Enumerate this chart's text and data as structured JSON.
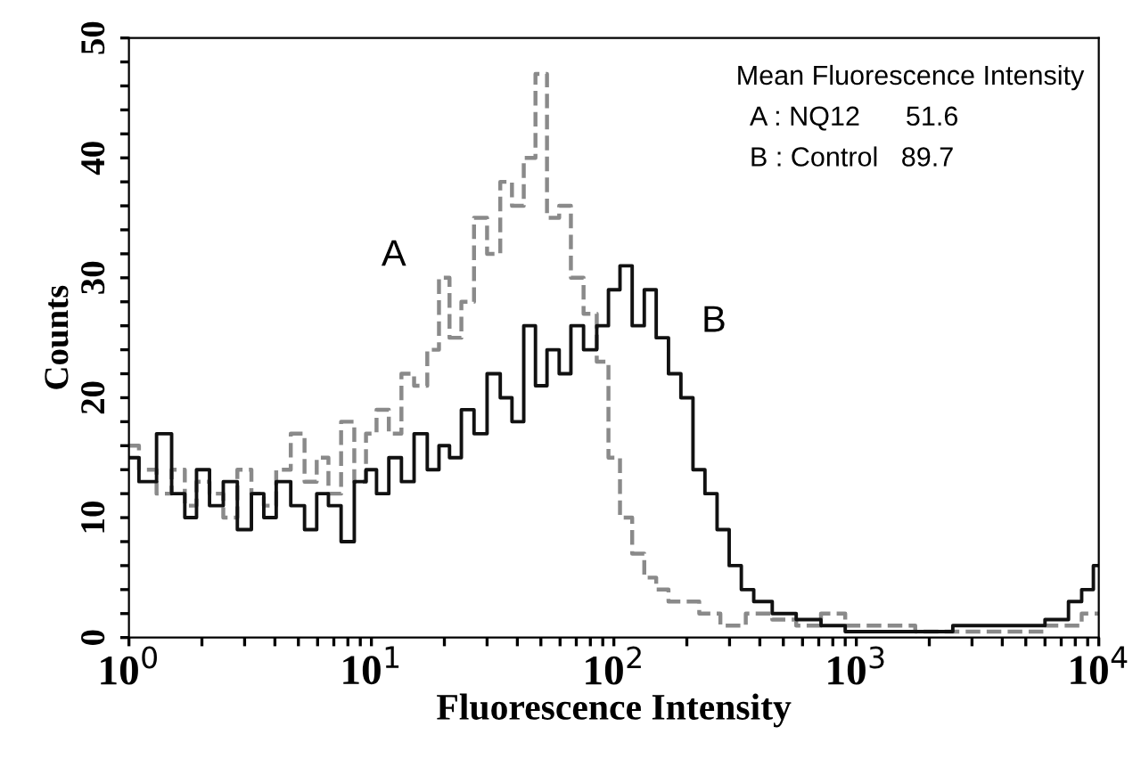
{
  "chart_data": {
    "type": "step",
    "xlabel": "Fluorescence Intensity",
    "ylabel": "Counts",
    "log": "x",
    "xlim": [
      1,
      10000
    ],
    "ylim": [
      0,
      50
    ],
    "xticks": [
      {
        "value": 1,
        "label": "10$^{0}$"
      },
      {
        "value": 2,
        "label": null
      },
      {
        "value": 3,
        "label": null
      },
      {
        "value": 4,
        "label": null
      },
      {
        "value": 5,
        "label": null
      },
      {
        "value": 6,
        "label": null
      },
      {
        "value": 7,
        "label": null
      },
      {
        "value": 8,
        "label": null
      },
      {
        "value": 9,
        "label": null
      },
      {
        "value": 10,
        "label": "10$^{1}$"
      },
      {
        "value": 20,
        "label": null
      },
      {
        "value": 30,
        "label": null
      },
      {
        "value": 40,
        "label": null
      },
      {
        "value": 50,
        "label": null
      },
      {
        "value": 60,
        "label": null
      },
      {
        "value": 70,
        "label": null
      },
      {
        "value": 80,
        "label": null
      },
      {
        "value": 90,
        "label": null
      },
      {
        "value": 100,
        "label": "10$^{2}$"
      },
      {
        "value": 200,
        "label": null
      },
      {
        "value": 300,
        "label": null
      },
      {
        "value": 400,
        "label": null
      },
      {
        "value": 500,
        "label": null
      },
      {
        "value": 600,
        "label": null
      },
      {
        "value": 700,
        "label": null
      },
      {
        "value": 800,
        "label": null
      },
      {
        "value": 900,
        "label": null
      },
      {
        "value": 1000,
        "label": "10$^{3}$"
      },
      {
        "value": 2000,
        "label": null
      },
      {
        "value": 3000,
        "label": null
      },
      {
        "value": 4000,
        "label": null
      },
      {
        "value": 5000,
        "label": null
      },
      {
        "value": 6000,
        "label": null
      },
      {
        "value": 7000,
        "label": null
      },
      {
        "value": 8000,
        "label": null
      },
      {
        "value": 9000,
        "label": null
      },
      {
        "value": 10000,
        "label": "10$^{4}$"
      }
    ],
    "yticks": [
      0,
      {
        "value": 2,
        "label": null
      },
      {
        "value": 4,
        "label": null
      },
      {
        "value": 6,
        "label": null
      },
      {
        "value": 8,
        "label": null
      },
      10,
      {
        "value": 12,
        "label": null
      },
      {
        "value": 14,
        "label": null
      },
      {
        "value": 16,
        "label": null
      },
      {
        "value": 18,
        "label": null
      },
      20,
      {
        "value": 22,
        "label": null
      },
      {
        "value": 24,
        "label": null
      },
      {
        "value": 26,
        "label": null
      },
      {
        "value": 28,
        "label": null
      },
      30,
      {
        "value": 32,
        "label": null
      },
      {
        "value": 34,
        "label": null
      },
      {
        "value": 36,
        "label": null
      },
      {
        "value": 38,
        "label": null
      },
      40,
      {
        "value": 42,
        "label": null
      },
      {
        "value": 44,
        "label": null
      },
      {
        "value": 46,
        "label": null
      },
      {
        "value": 48,
        "label": null
      },
      50
    ],
    "grid": false,
    "legend": false,
    "annotations": [
      "Mean Fluorescence Intensity",
      "A : NQ12      51.6",
      "B : Control   89.7"
    ],
    "series": [
      {
        "name": "A",
        "color": "#8a8a8a",
        "line_style": "dashed",
        "x": [
          1,
          1.2,
          1.4,
          1.6,
          1.8,
          2,
          2.3,
          2.6,
          3,
          3.4,
          3.8,
          4.3,
          5,
          5.6,
          6.3,
          7,
          8,
          9,
          10,
          11,
          12.6,
          14,
          16,
          18,
          20,
          22,
          25,
          28,
          32,
          36,
          40,
          45,
          50,
          56,
          63,
          70,
          80,
          90,
          100,
          112,
          126,
          141,
          158,
          178,
          200,
          250,
          300,
          400,
          500,
          630,
          800,
          1000,
          1500,
          2000,
          3000,
          5000,
          7000,
          10000
        ],
        "values": [
          16,
          14,
          12,
          14,
          11,
          13,
          12,
          10,
          14,
          12,
          11,
          14,
          17,
          13,
          15,
          12,
          18,
          13,
          17,
          19,
          17,
          22,
          21,
          24,
          30,
          25,
          28,
          35,
          32,
          38,
          36,
          40,
          47,
          35,
          36,
          30,
          27,
          23,
          15,
          10,
          7,
          5,
          4,
          3,
          3,
          2,
          1,
          2,
          1.5,
          1,
          2,
          1,
          1,
          0.5,
          0.5,
          0.5,
          1,
          2
        ]
      },
      {
        "name": "B",
        "color": "#111111",
        "line_style": "solid",
        "x": [
          1,
          1.2,
          1.4,
          1.6,
          1.8,
          2,
          2.3,
          2.6,
          3,
          3.4,
          3.8,
          4.3,
          5,
          5.6,
          6.3,
          7,
          8,
          9,
          10,
          11,
          12.6,
          14,
          16,
          18,
          20,
          22,
          25,
          28,
          32,
          36,
          40,
          45,
          50,
          56,
          63,
          70,
          80,
          90,
          100,
          112,
          126,
          141,
          158,
          178,
          200,
          224,
          251,
          282,
          316,
          355,
          400,
          500,
          630,
          800,
          1000,
          1500,
          2000,
          3000,
          5000,
          7000,
          8000,
          9000,
          10000
        ],
        "values": [
          15,
          13,
          17,
          12,
          10,
          14,
          11,
          13,
          9,
          12,
          10,
          13,
          11,
          9,
          12,
          11,
          8,
          13,
          14,
          12,
          15,
          13,
          17,
          14,
          16,
          15,
          19,
          17,
          22,
          20,
          18,
          26,
          21,
          24,
          22,
          26,
          24,
          26,
          29,
          31,
          26,
          29,
          25,
          22,
          20,
          14,
          12,
          9,
          6,
          4,
          3,
          2,
          1.5,
          1,
          0.5,
          0.5,
          0.5,
          1,
          1,
          1.5,
          3,
          4,
          6
        ]
      }
    ]
  }
}
